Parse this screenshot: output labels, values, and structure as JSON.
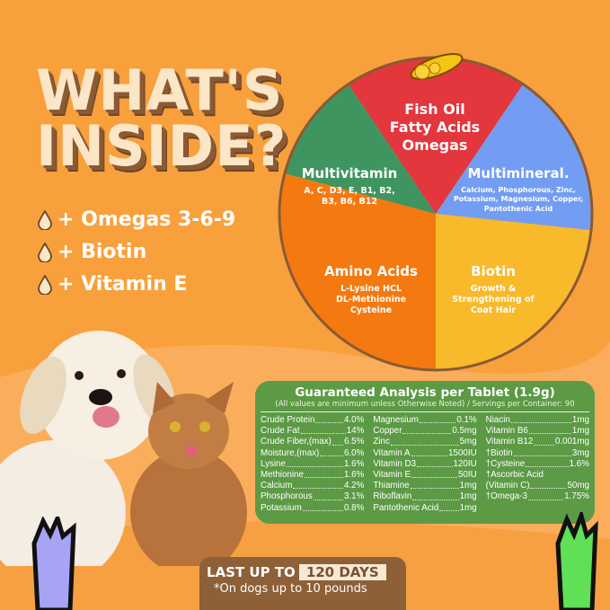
{
  "title": {
    "line1": "WHAT'S",
    "line2": "INSIDE?"
  },
  "bullets": [
    {
      "icon": "drop-icon",
      "text": "+ Omegas 3-6-9"
    },
    {
      "icon": "drop-icon",
      "text": "+ Biotin"
    },
    {
      "icon": "drop-icon",
      "text": "+ Vitamin E"
    }
  ],
  "wheel": {
    "fish": {
      "title_lines": [
        "Fish Oil",
        "Fatty Acids",
        "Omegas"
      ],
      "color": "#e3363d"
    },
    "multivitamin": {
      "title": "Multivitamin",
      "detail_lines": [
        "A, C, D3, E, B1, B2,",
        "B3, B6, B12"
      ],
      "color": "#3f9560"
    },
    "multimineral": {
      "title": "Multimineral.",
      "detail_lines": [
        "Calcium, Phosphorous, Zinc,",
        "Potassium, Magnesium, Copper,",
        "Pantothenic Acid"
      ],
      "color": "#739df2"
    },
    "amino": {
      "title": "Amino Acids",
      "detail_lines": [
        "L-Lysine HCL",
        "DL-Methionine",
        "Cysteine"
      ],
      "color": "#f47910"
    },
    "biotin": {
      "title": "Biotin",
      "detail_lines": [
        "Growth &",
        "Strengthening of",
        "Coat Hair"
      ],
      "color": "#f8b92a"
    }
  },
  "analysis": {
    "title": "Guaranteed Analysis per Tablet (1.9g)",
    "subtitle": "(All values are minimum unless Otherwise Noted) / Servings per Container: 90",
    "columns": [
      [
        {
          "n": "Crude Protein",
          "v": "4.0%"
        },
        {
          "n": "Crude Fat",
          "v": "14%"
        },
        {
          "n": "Crude  Fiber,(max)",
          "v": "6.5%"
        },
        {
          "n": "Moisture,(max)",
          "v": "6.0%"
        },
        {
          "n": "Lysine",
          "v": "1.6%"
        },
        {
          "n": "Methionine",
          "v": "1.6%"
        },
        {
          "n": "Calcium",
          "v": "4.2%"
        },
        {
          "n": "Phosphorous",
          "v": "3.1%"
        },
        {
          "n": "Potassium",
          "v": "0.8%"
        }
      ],
      [
        {
          "n": "Magnesium",
          "v": "0.1%"
        },
        {
          "n": "Copper",
          "v": "0.5mg"
        },
        {
          "n": "Zinc",
          "v": "5mg"
        },
        {
          "n": "Vitamin  A",
          "v": "1500IU"
        },
        {
          "n": "Vitamin  D3",
          "v": "120IU"
        },
        {
          "n": "Vitamin  E",
          "v": "50IU"
        },
        {
          "n": "Thiamine",
          "v": "1mg"
        },
        {
          "n": "Riboflavin",
          "v": "1mg"
        },
        {
          "n": "Pantothenic  Acid",
          "v": "1mg"
        }
      ],
      [
        {
          "n": "Niacin",
          "v": "1mg"
        },
        {
          "n": "Vitamin B6",
          "v": "1mg"
        },
        {
          "n": "Vitamin B12",
          "v": " 0.001mg"
        },
        {
          "n": "†Biotin",
          "v": "3mg"
        },
        {
          "n": "†Cysteine",
          "v": "1.6%"
        },
        {
          "n": "†Ascorbic Acid",
          "v": ""
        },
        {
          "n": "(Vitamin C)",
          "v": "50mg"
        },
        {
          "n": "†Omega-3",
          "v": "1.75%"
        }
      ]
    ]
  },
  "footer": {
    "last": "LAST UP TO",
    "days": "120 DAYS",
    "note": "*On dogs up to 10 pounds"
  },
  "colors": {
    "background": "#f8a03c",
    "panel": "#5c9a45",
    "footer": "#8d6038"
  }
}
